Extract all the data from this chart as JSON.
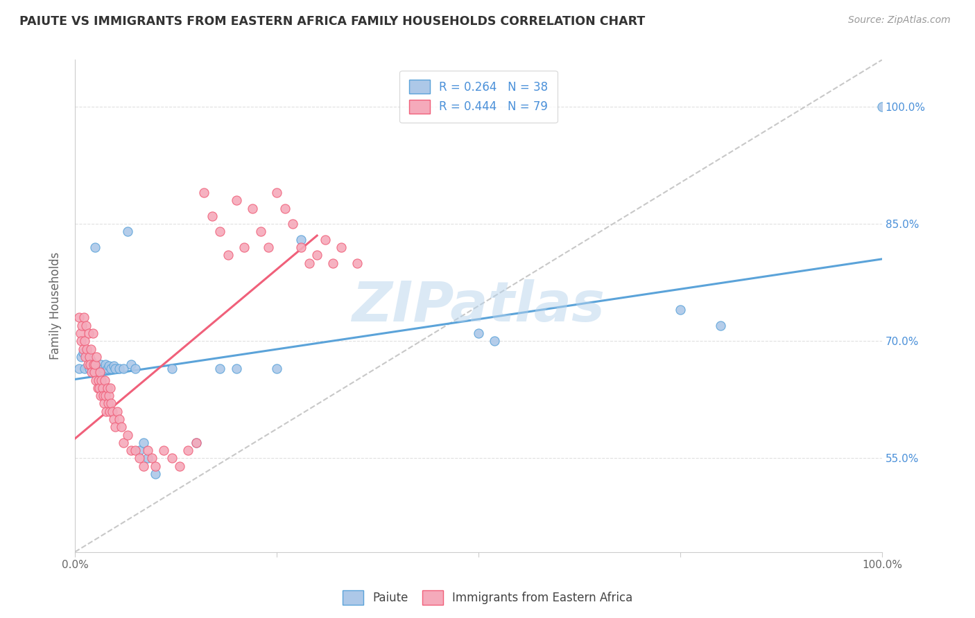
{
  "title": "PAIUTE VS IMMIGRANTS FROM EASTERN AFRICA FAMILY HOUSEHOLDS CORRELATION CHART",
  "source": "Source: ZipAtlas.com",
  "ylabel": "Family Households",
  "ytick_labels": [
    "55.0%",
    "70.0%",
    "85.0%",
    "100.0%"
  ],
  "ytick_values": [
    0.55,
    0.7,
    0.85,
    1.0
  ],
  "xlim": [
    0.0,
    1.0
  ],
  "ylim": [
    0.43,
    1.06
  ],
  "legend_r1": "R = 0.264   N = 38",
  "legend_r2": "R = 0.444   N = 79",
  "color_blue": "#adc8e8",
  "color_pink": "#f5aabb",
  "line_blue": "#5ba3d9",
  "line_pink": "#f0607a",
  "line_diagonal_color": "#c8c8c8",
  "watermark": "ZIPatlas",
  "paiute_x": [
    0.005,
    0.008,
    0.01,
    0.012,
    0.015,
    0.018,
    0.02,
    0.022,
    0.025,
    0.03,
    0.032,
    0.035,
    0.038,
    0.04,
    0.042,
    0.045,
    0.048,
    0.05,
    0.055,
    0.06,
    0.065,
    0.07,
    0.075,
    0.08,
    0.085,
    0.09,
    0.1,
    0.12,
    0.15,
    0.18,
    0.2,
    0.25,
    0.28,
    0.5,
    0.52,
    0.75,
    0.8,
    1.0
  ],
  "paiute_y": [
    0.665,
    0.68,
    0.685,
    0.665,
    0.685,
    0.665,
    0.675,
    0.665,
    0.82,
    0.665,
    0.67,
    0.665,
    0.67,
    0.665,
    0.668,
    0.665,
    0.668,
    0.665,
    0.665,
    0.665,
    0.84,
    0.67,
    0.665,
    0.56,
    0.57,
    0.55,
    0.53,
    0.665,
    0.57,
    0.665,
    0.665,
    0.665,
    0.83,
    0.71,
    0.7,
    0.74,
    0.72,
    1.0
  ],
  "eastern_africa_x": [
    0.005,
    0.007,
    0.008,
    0.009,
    0.01,
    0.011,
    0.012,
    0.013,
    0.014,
    0.015,
    0.016,
    0.017,
    0.018,
    0.019,
    0.02,
    0.021,
    0.022,
    0.023,
    0.024,
    0.025,
    0.026,
    0.027,
    0.028,
    0.029,
    0.03,
    0.031,
    0.032,
    0.033,
    0.034,
    0.035,
    0.036,
    0.037,
    0.038,
    0.039,
    0.04,
    0.041,
    0.042,
    0.043,
    0.044,
    0.045,
    0.046,
    0.048,
    0.05,
    0.052,
    0.055,
    0.058,
    0.06,
    0.065,
    0.07,
    0.075,
    0.08,
    0.085,
    0.09,
    0.095,
    0.1,
    0.11,
    0.12,
    0.13,
    0.14,
    0.15,
    0.16,
    0.17,
    0.18,
    0.19,
    0.2,
    0.21,
    0.22,
    0.23,
    0.24,
    0.25,
    0.26,
    0.27,
    0.28,
    0.29,
    0.3,
    0.31,
    0.32,
    0.33,
    0.35
  ],
  "eastern_africa_y": [
    0.73,
    0.71,
    0.7,
    0.72,
    0.69,
    0.73,
    0.7,
    0.68,
    0.72,
    0.69,
    0.67,
    0.71,
    0.68,
    0.67,
    0.69,
    0.66,
    0.71,
    0.67,
    0.66,
    0.67,
    0.65,
    0.68,
    0.64,
    0.65,
    0.64,
    0.66,
    0.63,
    0.65,
    0.64,
    0.63,
    0.62,
    0.65,
    0.63,
    0.61,
    0.64,
    0.62,
    0.63,
    0.61,
    0.64,
    0.62,
    0.61,
    0.6,
    0.59,
    0.61,
    0.6,
    0.59,
    0.57,
    0.58,
    0.56,
    0.56,
    0.55,
    0.54,
    0.56,
    0.55,
    0.54,
    0.56,
    0.55,
    0.54,
    0.56,
    0.57,
    0.89,
    0.86,
    0.84,
    0.81,
    0.88,
    0.82,
    0.87,
    0.84,
    0.82,
    0.89,
    0.87,
    0.85,
    0.82,
    0.8,
    0.81,
    0.83,
    0.8,
    0.82,
    0.8
  ],
  "blue_trendline_x": [
    0.0,
    1.0
  ],
  "blue_trendline_y": [
    0.651,
    0.805
  ],
  "pink_trendline_x": [
    0.0,
    0.3
  ],
  "pink_trendline_y": [
    0.575,
    0.835
  ]
}
